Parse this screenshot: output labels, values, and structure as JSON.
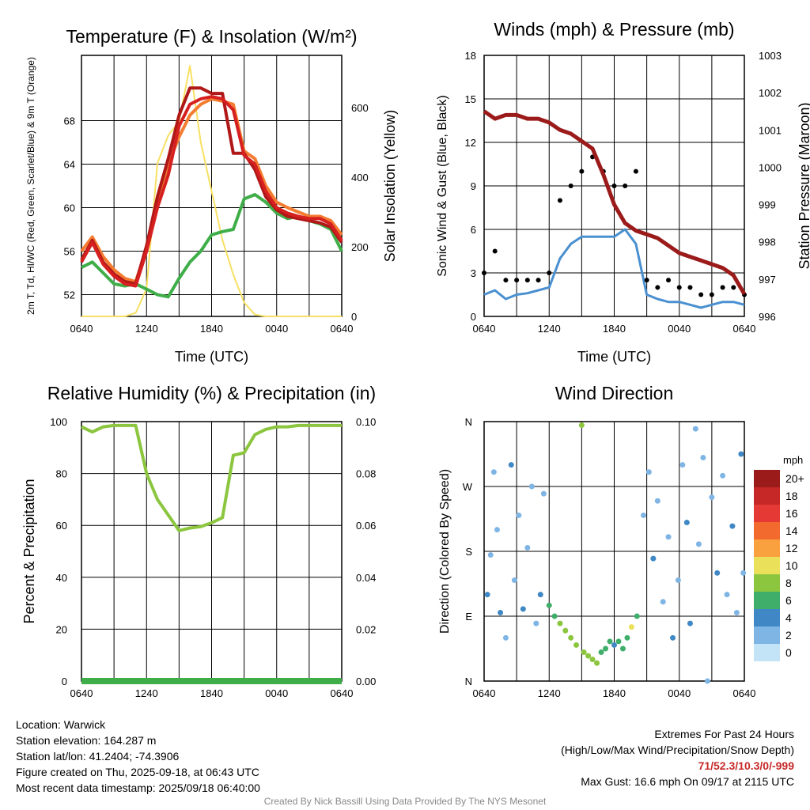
{
  "colors": {
    "t2m": "#d62020",
    "dew": "#3fae49",
    "hiwc": "#b01818",
    "t9m": "#f47c30",
    "solar": "#f7e063",
    "sonic": "#4a90d0",
    "gust": "#000000",
    "pressure": "#9b1b1b",
    "rh": "#8cc63f",
    "precip": "#3fae49"
  },
  "panels": {
    "temp": {
      "title": "Temperature (F) & Insolation (W/m²)",
      "ylabel_left": "2m T, Td, HI/WC (Red, Green, Scarlet/Blue) & 9m T (Orange)",
      "ylabel_right": "Solar Insolation (Yellow)",
      "xlabel": "Time (UTC)"
    },
    "wind": {
      "title": "Winds (mph) & Pressure (mb)",
      "ylabel_left": "Sonic Wind & Gust (Blue, Black)",
      "ylabel_right": "Station Pressure (Maroon)",
      "xlabel": "Time (UTC)"
    },
    "rh": {
      "title": "Relative Humidity (%) & Precipitation (in)",
      "ylabel_left": "Percent & Precipitation"
    },
    "dir": {
      "title": "Wind Direction",
      "ylabel_left": "Direction (Colored By Speed)",
      "legend_title": "mph",
      "legend_labels": [
        "20+",
        "18",
        "16",
        "14",
        "12",
        "10",
        "8",
        "6",
        "4",
        "2",
        "0"
      ],
      "legend_colors": [
        "#9b1b1b",
        "#c62828",
        "#e53935",
        "#f26a2e",
        "#f9a03f",
        "#ebe05a",
        "#8cc63f",
        "#3fae6b",
        "#3f88c5",
        "#7fb5e5",
        "#c3e3f7"
      ]
    }
  },
  "info": {
    "location": "Location: Warwick",
    "elevation": "Station elevation: 164.287 m",
    "latlon": "Station lat/lon: 41.2404; -74.3906",
    "created": "Figure created on Thu, 2025-09-18, at 06:43 UTC",
    "recent": "Most recent data timestamp: 2025/09/18 06:40:00",
    "extremes_title": "Extremes For Past 24 Hours",
    "extremes_sub": "(High/Low/Max Wind/Precipitation/Snow Depth)",
    "extremes_values": "71/52.3/10.3/0/-999",
    "max_gust": "Max Gust: 16.6 mph On 09/17 at 2115 UTC",
    "credit": "Created By Nick Bassill Using Data Provided By The NYS Mesonet"
  },
  "chart_data": [
    {
      "type": "line",
      "title": "Temperature (F) & Insolation (W/m²)",
      "xlabel": "Time (UTC)",
      "x_ticks": [
        "0640",
        "1240",
        "1840",
        "0040",
        "0640"
      ],
      "ylim": [
        50,
        74
      ],
      "y_ticks": [
        52,
        56,
        60,
        64,
        68
      ],
      "y2lim": [
        0,
        750
      ],
      "y2_ticks": [
        0,
        200,
        400,
        600
      ],
      "x_hours": [
        0,
        1,
        2,
        3,
        4,
        5,
        6,
        7,
        8,
        9,
        10,
        11,
        12,
        13,
        14,
        15,
        16,
        17,
        18,
        19,
        20,
        21,
        22,
        23,
        24
      ],
      "series": [
        {
          "key": "t2m",
          "axis": "left",
          "values": [
            55.0,
            56.8,
            54.8,
            53.7,
            53.0,
            52.8,
            56.0,
            60.0,
            63.0,
            67.5,
            69.5,
            70.0,
            70.2,
            70.0,
            69.0,
            64.8,
            64.0,
            61.5,
            60.0,
            59.5,
            59.2,
            59.0,
            59.0,
            58.5,
            57.0
          ]
        },
        {
          "key": "hiwc",
          "axis": "left",
          "values": [
            55.2,
            57.0,
            55.0,
            53.9,
            53.2,
            53.0,
            56.5,
            61.0,
            64.5,
            68.5,
            71.0,
            71.0,
            70.5,
            70.5,
            65.0,
            65.0,
            63.5,
            61.0,
            59.8,
            59.2,
            59.0,
            58.8,
            58.6,
            58.2,
            56.8
          ]
        },
        {
          "key": "t9m",
          "axis": "left",
          "values": [
            56.0,
            57.3,
            55.5,
            54.3,
            53.5,
            53.2,
            56.2,
            60.5,
            64.0,
            66.5,
            68.5,
            69.5,
            70.0,
            69.8,
            69.5,
            65.2,
            64.5,
            62.0,
            60.5,
            60.0,
            59.6,
            59.2,
            59.2,
            58.8,
            57.5
          ]
        },
        {
          "key": "dew",
          "axis": "left",
          "values": [
            54.5,
            55.0,
            54.0,
            53.0,
            52.8,
            53.0,
            52.5,
            52.0,
            51.8,
            53.5,
            55.0,
            56.0,
            57.5,
            57.8,
            58.0,
            60.8,
            61.2,
            60.5,
            59.5,
            59.0,
            59.2,
            58.8,
            58.5,
            58.0,
            56.0
          ]
        },
        {
          "key": "solar",
          "axis": "right",
          "values": [
            0,
            0,
            0,
            0,
            0,
            10,
            80,
            440,
            520,
            560,
            720,
            500,
            360,
            220,
            120,
            40,
            5,
            0,
            0,
            0,
            0,
            0,
            0,
            0,
            0
          ]
        }
      ]
    },
    {
      "type": "line",
      "title": "Winds (mph) & Pressure (mb)",
      "xlabel": "Time (UTC)",
      "x_ticks": [
        "0640",
        "1240",
        "1840",
        "0040",
        "0640"
      ],
      "ylim": [
        0,
        18
      ],
      "y_ticks": [
        0,
        3,
        6,
        9,
        12,
        15,
        18
      ],
      "y2lim": [
        996,
        1003
      ],
      "y2_ticks": [
        996,
        997,
        998,
        999,
        1000,
        1001,
        1002,
        1003
      ],
      "x_hours": [
        0,
        1,
        2,
        3,
        4,
        5,
        6,
        7,
        8,
        9,
        10,
        11,
        12,
        13,
        14,
        15,
        16,
        17,
        18,
        19,
        20,
        21,
        22,
        23,
        24
      ],
      "series": [
        {
          "key": "pressure",
          "axis": "right",
          "values": [
            1001.5,
            1001.3,
            1001.4,
            1001.4,
            1001.3,
            1001.3,
            1001.2,
            1001.0,
            1000.9,
            1000.7,
            1000.5,
            999.8,
            999.0,
            998.5,
            998.3,
            998.2,
            998.1,
            997.9,
            997.7,
            997.6,
            997.5,
            997.4,
            997.3,
            997.1,
            996.6
          ]
        },
        {
          "key": "sonic",
          "axis": "left",
          "values": [
            1.5,
            1.8,
            1.2,
            1.5,
            1.6,
            1.8,
            2.0,
            4.0,
            5.0,
            5.5,
            5.5,
            5.5,
            5.5,
            6.0,
            5.0,
            1.5,
            1.2,
            1.0,
            1.0,
            0.8,
            0.6,
            0.8,
            1.0,
            1.0,
            0.8
          ]
        },
        {
          "key": "gust",
          "axis": "left",
          "values": [
            3.0,
            4.5,
            2.5,
            2.5,
            2.5,
            2.5,
            3.0,
            8.0,
            9.0,
            10.0,
            11.0,
            10.0,
            9.0,
            9.0,
            10.0,
            2.5,
            2.0,
            2.5,
            2.0,
            2.0,
            1.5,
            1.5,
            2.0,
            2.0,
            1.5
          ]
        }
      ]
    },
    {
      "type": "line",
      "title": "Relative Humidity (%) & Precipitation (in)",
      "x_ticks": [
        "0640",
        "1240",
        "1840",
        "0040",
        "0640"
      ],
      "ylim": [
        0,
        100
      ],
      "y_ticks": [
        0,
        20,
        40,
        60,
        80,
        100
      ],
      "y2lim": [
        0,
        0.1
      ],
      "y2_ticks": [
        "0.00",
        "0.02",
        "0.04",
        "0.06",
        "0.08",
        "0.10"
      ],
      "x_hours": [
        0,
        1,
        2,
        3,
        4,
        5,
        6,
        7,
        8,
        9,
        10,
        11,
        12,
        13,
        14,
        15,
        16,
        17,
        18,
        19,
        20,
        21,
        22,
        23,
        24
      ],
      "series": [
        {
          "key": "rh",
          "axis": "left",
          "values": [
            98,
            96,
            98,
            98.5,
            98.5,
            98.5,
            80,
            70,
            64,
            58,
            59,
            59.5,
            61,
            63,
            87,
            88,
            95,
            97,
            98,
            98,
            98.5,
            98.5,
            98.5,
            98.5,
            98.5
          ]
        },
        {
          "key": "precip",
          "axis": "right",
          "values": [
            0,
            0,
            0,
            0,
            0,
            0,
            0,
            0,
            0,
            0,
            0,
            0,
            0,
            0,
            0,
            0,
            0,
            0,
            0,
            0,
            0,
            0,
            0,
            0,
            0
          ]
        }
      ]
    },
    {
      "type": "scatter",
      "title": "Wind Direction",
      "x_ticks": [
        "0640",
        "1240",
        "1840",
        "0040",
        "0640"
      ],
      "y_ticks": [
        "N",
        "E",
        "S",
        "W",
        "N"
      ],
      "ylim": [
        0,
        360
      ],
      "points": [
        {
          "x": 0.3,
          "dir": 120,
          "spd": 3
        },
        {
          "x": 0.6,
          "dir": 175,
          "spd": 1
        },
        {
          "x": 0.9,
          "dir": 290,
          "spd": 2
        },
        {
          "x": 1.2,
          "dir": 210,
          "spd": 1
        },
        {
          "x": 1.5,
          "dir": 95,
          "spd": 3
        },
        {
          "x": 2.0,
          "dir": 60,
          "spd": 2
        },
        {
          "x": 2.5,
          "dir": 300,
          "spd": 3
        },
        {
          "x": 2.8,
          "dir": 140,
          "spd": 1
        },
        {
          "x": 3.2,
          "dir": 230,
          "spd": 2
        },
        {
          "x": 3.6,
          "dir": 100,
          "spd": 4
        },
        {
          "x": 4.0,
          "dir": 185,
          "spd": 1
        },
        {
          "x": 4.4,
          "dir": 270,
          "spd": 2
        },
        {
          "x": 4.8,
          "dir": 80,
          "spd": 2
        },
        {
          "x": 5.2,
          "dir": 120,
          "spd": 4
        },
        {
          "x": 5.5,
          "dir": 260,
          "spd": 1
        },
        {
          "x": 6.0,
          "dir": 105,
          "spd": 6
        },
        {
          "x": 6.5,
          "dir": 90,
          "spd": 6
        },
        {
          "x": 7.0,
          "dir": 80,
          "spd": 7
        },
        {
          "x": 7.5,
          "dir": 70,
          "spd": 7
        },
        {
          "x": 8.0,
          "dir": 60,
          "spd": 8
        },
        {
          "x": 8.5,
          "dir": 50,
          "spd": 7
        },
        {
          "x": 9.0,
          "dir": 355,
          "spd": 7
        },
        {
          "x": 9.2,
          "dir": 40,
          "spd": 8
        },
        {
          "x": 9.6,
          "dir": 35,
          "spd": 7
        },
        {
          "x": 10.0,
          "dir": 30,
          "spd": 8
        },
        {
          "x": 10.4,
          "dir": 25,
          "spd": 7
        },
        {
          "x": 10.8,
          "dir": 40,
          "spd": 6
        },
        {
          "x": 11.2,
          "dir": 45,
          "spd": 6
        },
        {
          "x": 11.6,
          "dir": 55,
          "spd": 5
        },
        {
          "x": 12.0,
          "dir": 50,
          "spd": 4
        },
        {
          "x": 12.4,
          "dir": 55,
          "spd": 5
        },
        {
          "x": 12.8,
          "dir": 45,
          "spd": 6
        },
        {
          "x": 13.2,
          "dir": 60,
          "spd": 5
        },
        {
          "x": 13.6,
          "dir": 75,
          "spd": 10
        },
        {
          "x": 14.1,
          "dir": 90,
          "spd": 6
        },
        {
          "x": 14.7,
          "dir": 230,
          "spd": 1
        },
        {
          "x": 15.2,
          "dir": 290,
          "spd": 2
        },
        {
          "x": 15.6,
          "dir": 170,
          "spd": 3
        },
        {
          "x": 16.0,
          "dir": 250,
          "spd": 2
        },
        {
          "x": 16.5,
          "dir": 110,
          "spd": 1
        },
        {
          "x": 17.0,
          "dir": 200,
          "spd": 2
        },
        {
          "x": 17.4,
          "dir": 60,
          "spd": 4
        },
        {
          "x": 17.9,
          "dir": 140,
          "spd": 1
        },
        {
          "x": 18.3,
          "dir": 300,
          "spd": 2
        },
        {
          "x": 18.7,
          "dir": 220,
          "spd": 3
        },
        {
          "x": 19.0,
          "dir": 80,
          "spd": 3
        },
        {
          "x": 19.5,
          "dir": 350,
          "spd": 1
        },
        {
          "x": 19.8,
          "dir": 190,
          "spd": 2
        },
        {
          "x": 20.2,
          "dir": 310,
          "spd": 2
        },
        {
          "x": 20.6,
          "dir": 0,
          "spd": 1
        },
        {
          "x": 21.0,
          "dir": 255,
          "spd": 2
        },
        {
          "x": 21.5,
          "dir": 150,
          "spd": 3
        },
        {
          "x": 22.0,
          "dir": 285,
          "spd": 1
        },
        {
          "x": 22.4,
          "dir": 120,
          "spd": 2
        },
        {
          "x": 22.9,
          "dir": 215,
          "spd": 3
        },
        {
          "x": 23.3,
          "dir": 95,
          "spd": 2
        },
        {
          "x": 23.7,
          "dir": 315,
          "spd": 3
        },
        {
          "x": 23.9,
          "dir": 150,
          "spd": 1
        }
      ]
    }
  ]
}
